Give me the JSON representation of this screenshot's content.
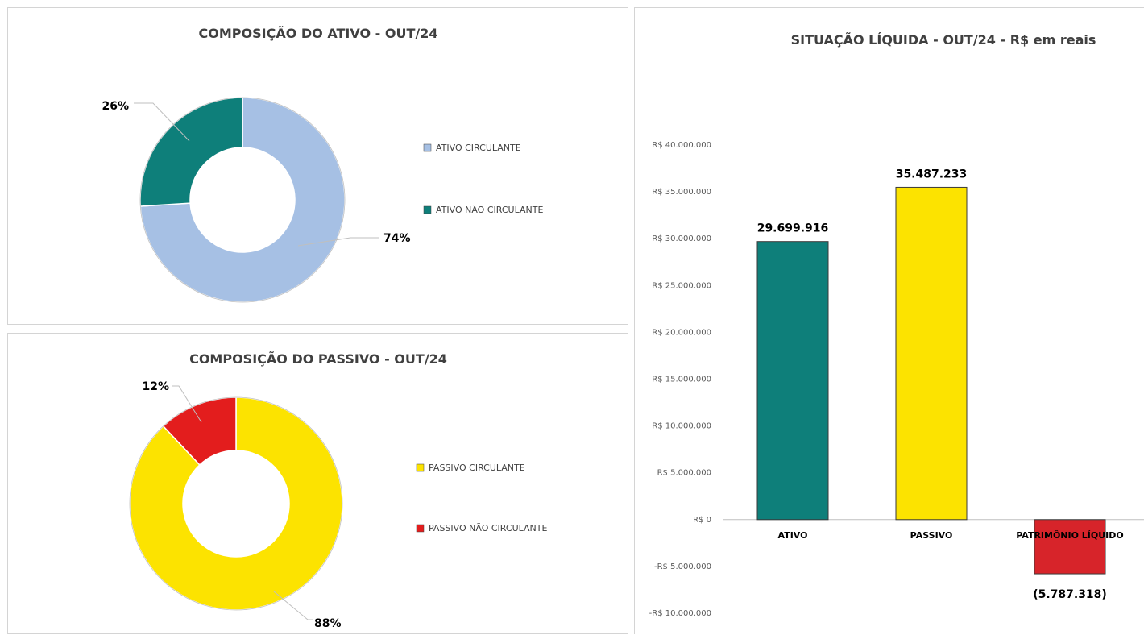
{
  "chart_data": [
    {
      "type": "pie",
      "title": "COMPOSIÇÃO DO ATIVO -  OUT/24",
      "categories": [
        "ATIVO CIRCULANTE",
        "ATIVO NÃO CIRCULANTE"
      ],
      "values": [
        74,
        26
      ],
      "value_labels": [
        "74%",
        "26%"
      ],
      "colors": [
        "#A6C0E4",
        "#0E7F7A"
      ],
      "donut": true,
      "legend_position": "right"
    },
    {
      "type": "pie",
      "title": "COMPOSIÇÃO DO PASSIVO -  OUT/24",
      "categories": [
        "PASSIVO CIRCULANTE",
        "PASSIVO NÃO CIRCULANTE"
      ],
      "values": [
        88,
        12
      ],
      "value_labels": [
        "88%",
        "12%"
      ],
      "colors": [
        "#FCE300",
        "#E31D1D"
      ],
      "donut": true,
      "legend_position": "right"
    },
    {
      "type": "bar",
      "title": "SITUAÇÃO LÍQUIDA -   OUT/24  - R$ em reais",
      "categories": [
        "ATIVO",
        "PASSIVO",
        "PATRIMÔNIO LÍQUIDO"
      ],
      "values": [
        29699916,
        35487233,
        -5787318
      ],
      "value_labels": [
        "29.699.916",
        "35.487.233",
        "(5.787.318)"
      ],
      "colors": [
        "#0E7F7A",
        "#FCE300",
        "#D7242A"
      ],
      "ylim": [
        -10000000,
        40000000
      ],
      "ytick_step": 5000000,
      "yticks": [
        "R$ 40.000.000",
        "R$ 35.000.000",
        "R$ 30.000.000",
        "R$ 25.000.000",
        "R$ 20.000.000",
        "R$ 15.000.000",
        "R$ 10.000.000",
        "R$ 5.000.000",
        "R$ 0",
        "-R$ 5.000.000",
        "-R$ 10.000.000"
      ],
      "xlabel": "",
      "ylabel": "",
      "grid": false
    }
  ]
}
